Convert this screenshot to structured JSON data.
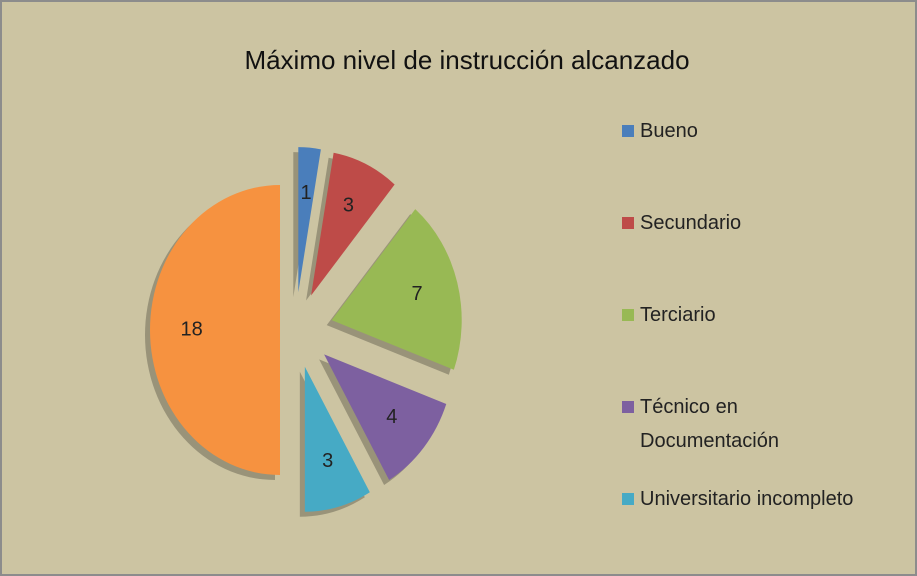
{
  "chart_data": {
    "type": "pie",
    "title": "Máximo nivel de instrucción alcanzado",
    "categories": [
      "Bueno",
      "Secundario",
      "Terciario",
      "Técnico en Documentación",
      "Universitario incompleto",
      null
    ],
    "values": [
      1,
      3,
      7,
      4,
      3,
      18
    ],
    "colors": [
      "#4a7ebb",
      "#be4b48",
      "#98b954",
      "#7d60a0",
      "#46aac5",
      "#f69240"
    ],
    "legend": "right"
  }
}
